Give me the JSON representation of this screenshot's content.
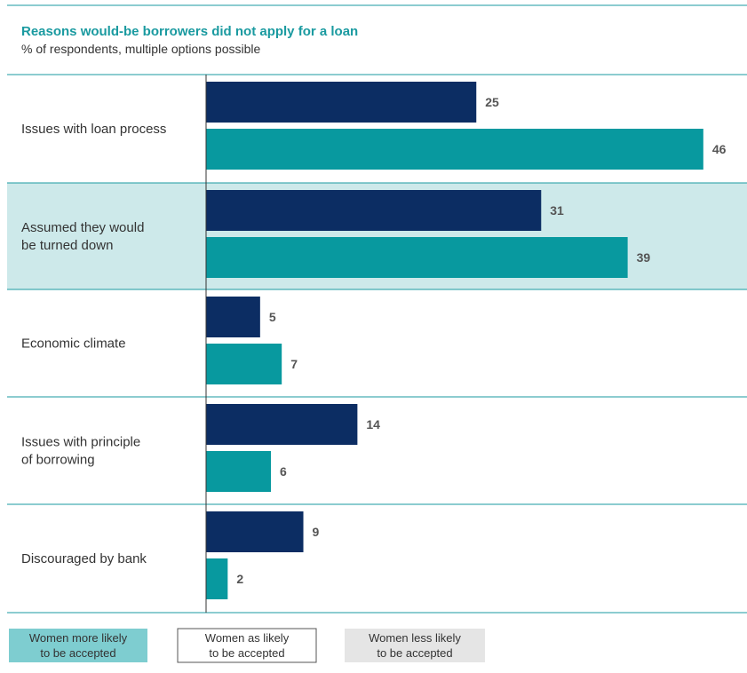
{
  "chart_data": {
    "type": "bar",
    "orientation": "horizontal",
    "title": "Reasons would-be borrowers did not apply for a loan",
    "subtitle": "% of respondents, multiple options possible",
    "categories": [
      [
        "Issues with loan process"
      ],
      [
        "Assumed they would",
        "be turned down"
      ],
      [
        "Economic climate"
      ],
      [
        "Issues with principle",
        "of borrowing"
      ],
      [
        "Discouraged by bank"
      ]
    ],
    "series": [
      {
        "values": [
          25,
          31,
          5,
          14,
          9
        ],
        "color": "#0c2d63"
      },
      {
        "values": [
          46,
          39,
          7,
          6,
          2
        ],
        "color": "#08999f"
      }
    ],
    "highlight": [
      "none",
      "more",
      "none",
      "none",
      "none"
    ],
    "xlim": [
      0,
      46
    ],
    "legend": [
      {
        "key": "more",
        "lines": [
          "Women more likely",
          "to be accepted"
        ],
        "fill": "#7ecdd0",
        "stroke": "none"
      },
      {
        "key": "same",
        "lines": [
          "Women as likely",
          "to be accepted"
        ],
        "fill": "#ffffff",
        "stroke": "#555555"
      },
      {
        "key": "less",
        "lines": [
          "Women less likely",
          "to be accepted"
        ],
        "fill": "#e5e5e5",
        "stroke": "none"
      }
    ],
    "colors": {
      "more": "#cde9ea",
      "less": "#e5e5e5",
      "divider": "#1a9aa0",
      "axis": "#333333"
    }
  }
}
